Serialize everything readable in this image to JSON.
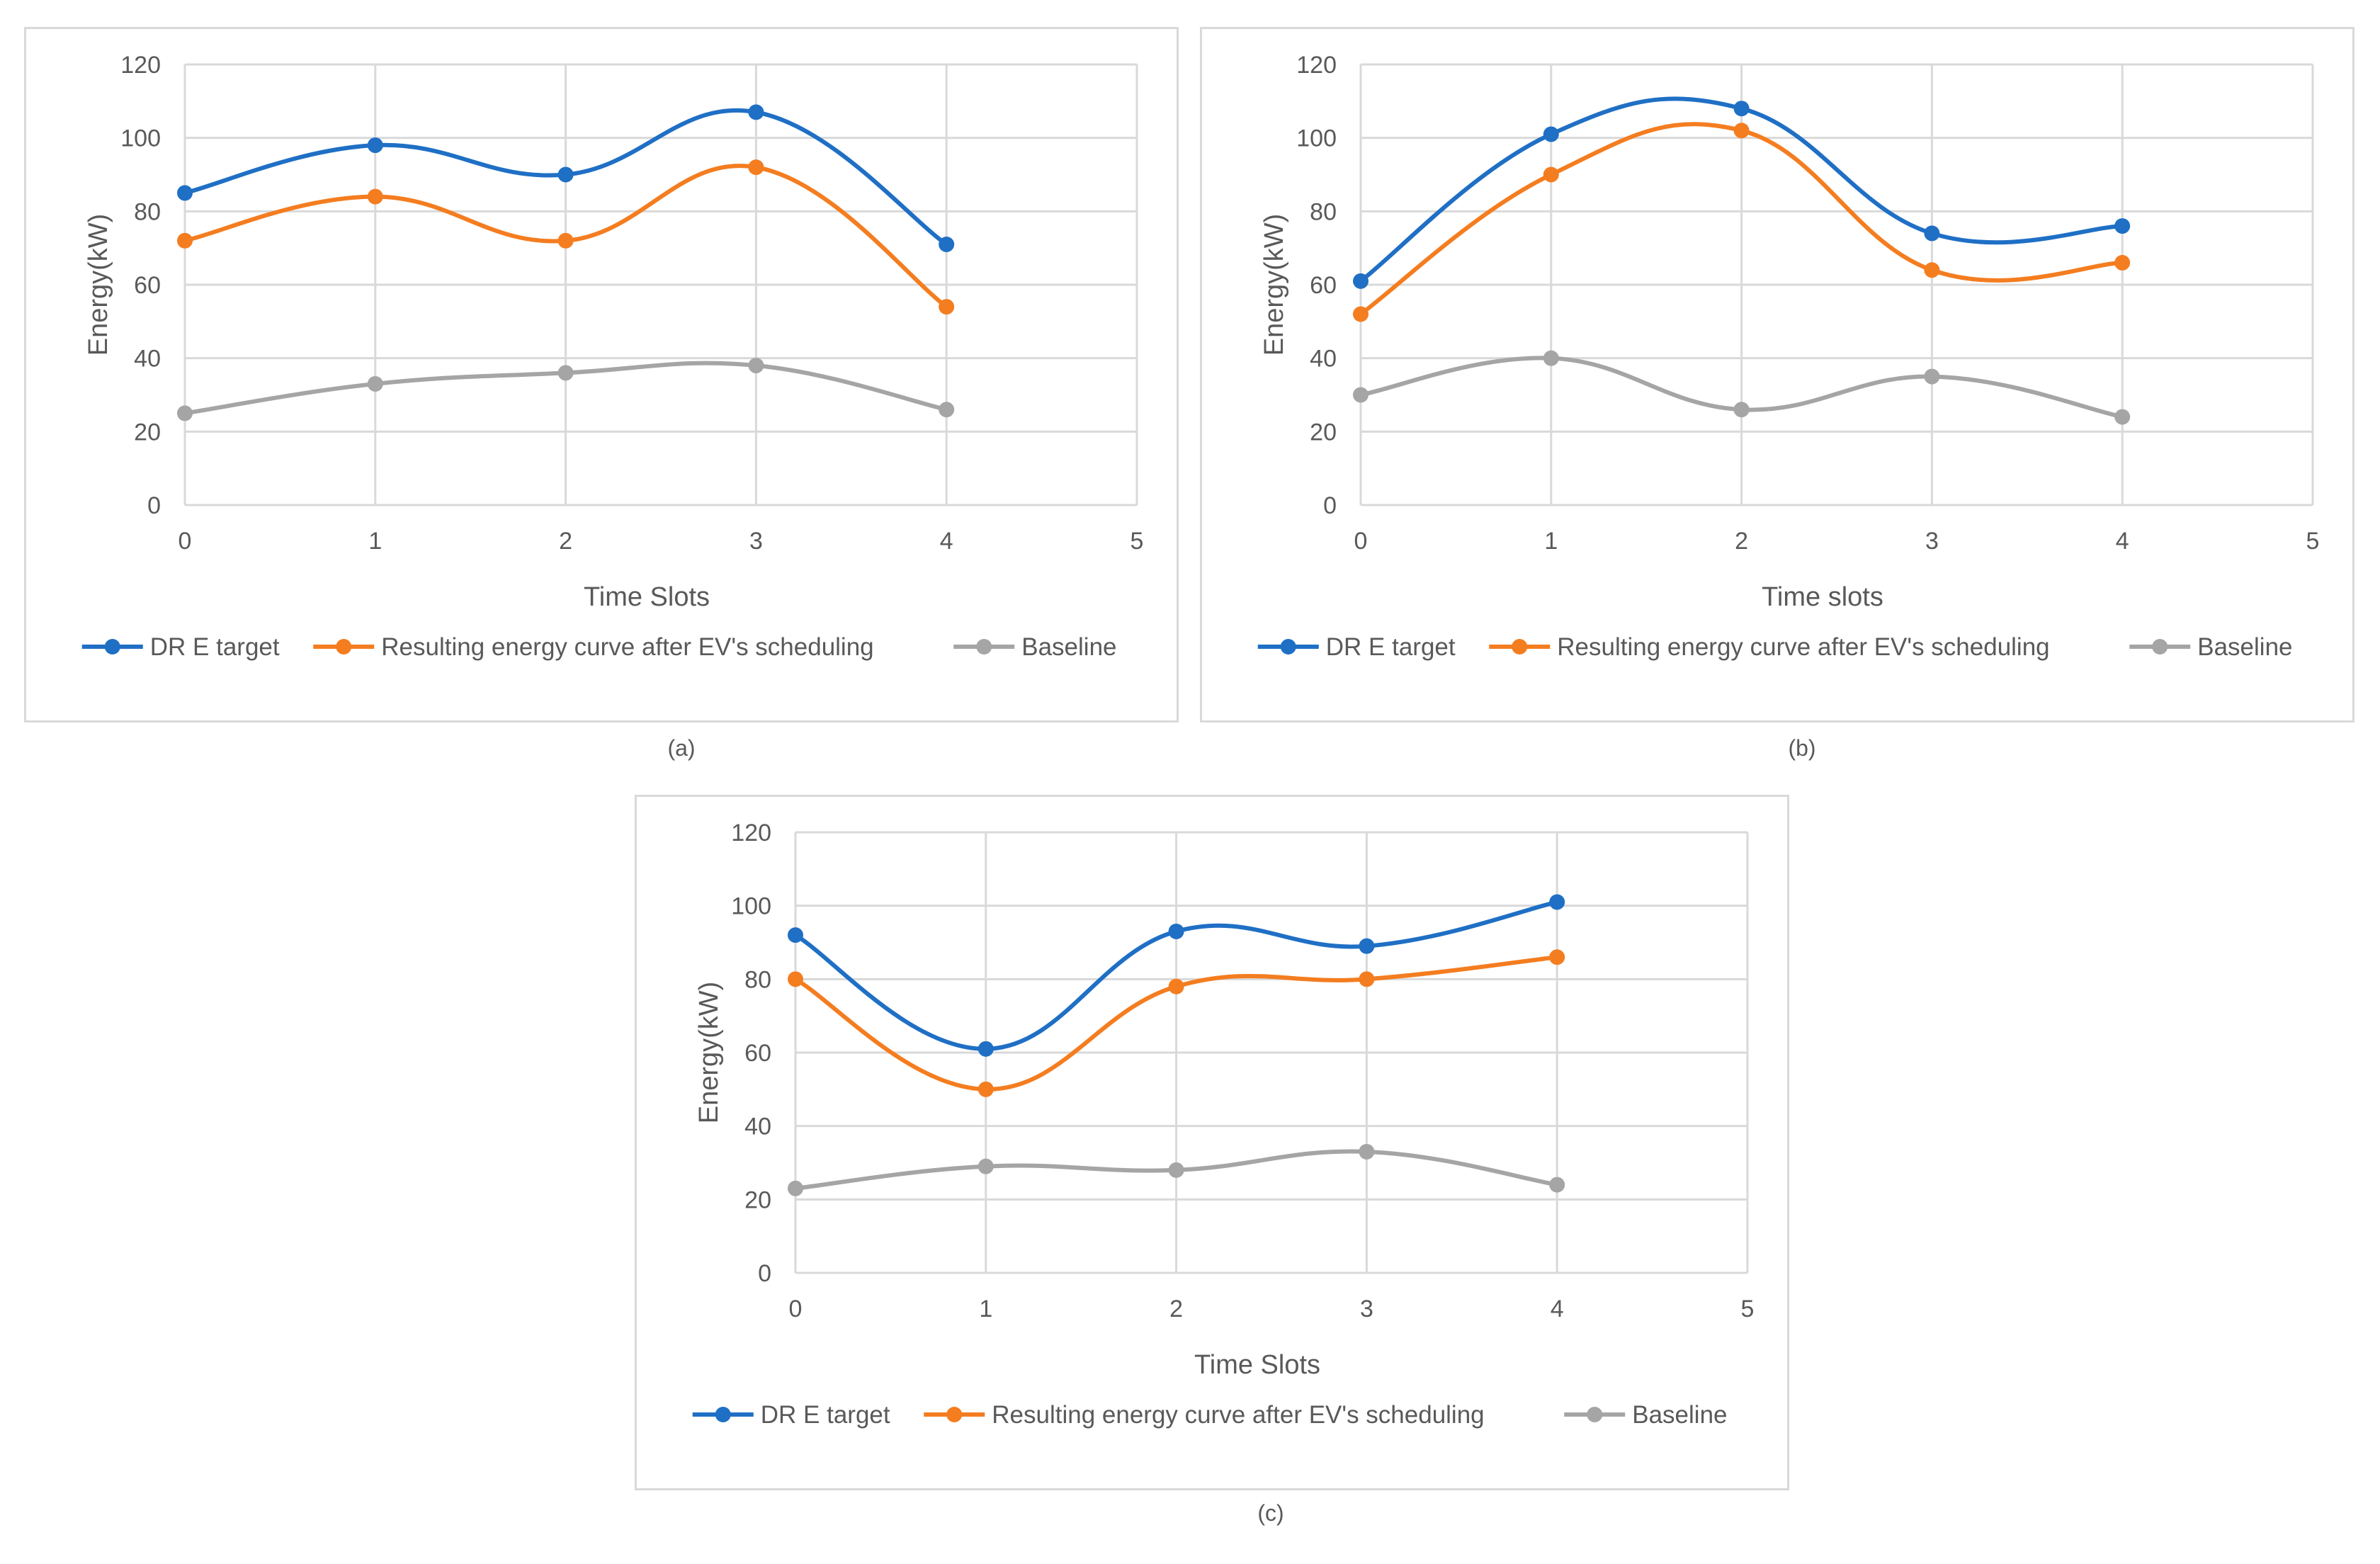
{
  "chart_data": [
    {
      "type": "line",
      "caption": "(a)",
      "xlabel": "Time Slots",
      "ylabel": "Energy(kW)",
      "xlim": [
        0,
        5
      ],
      "ylim": [
        0,
        120
      ],
      "xticks": [
        "0",
        "1",
        "2",
        "3",
        "4",
        "5"
      ],
      "yticks": [
        "0",
        "20",
        "40",
        "60",
        "80",
        "100",
        "120"
      ],
      "x": [
        0,
        1,
        2,
        3,
        4
      ],
      "series": [
        {
          "name": "DR E target",
          "color": "#1f6fc5",
          "values": [
            85,
            98,
            90,
            107,
            71
          ]
        },
        {
          "name": "Resulting energy curve after EV's scheduling",
          "color": "#f47d20",
          "values": [
            72,
            84,
            72,
            92,
            54
          ]
        },
        {
          "name": "Baseline",
          "color": "#a5a5a5",
          "values": [
            25,
            33,
            36,
            38,
            26
          ]
        }
      ]
    },
    {
      "type": "line",
      "caption": "(b)",
      "xlabel": "Time slots",
      "ylabel": "Energy(kW)",
      "xlim": [
        0,
        5
      ],
      "ylim": [
        0,
        120
      ],
      "xticks": [
        "0",
        "1",
        "2",
        "3",
        "4",
        "5"
      ],
      "yticks": [
        "0",
        "20",
        "40",
        "60",
        "80",
        "100",
        "120"
      ],
      "x": [
        0,
        1,
        2,
        3,
        4
      ],
      "series": [
        {
          "name": "DR E target",
          "color": "#1f6fc5",
          "values": [
            61,
            101,
            108,
            74,
            76
          ]
        },
        {
          "name": "Resulting energy curve after EV's scheduling",
          "color": "#f47d20",
          "values": [
            52,
            90,
            102,
            64,
            66
          ]
        },
        {
          "name": "Baseline",
          "color": "#a5a5a5",
          "values": [
            30,
            40,
            26,
            35,
            24
          ]
        }
      ]
    },
    {
      "type": "line",
      "caption": "(c)",
      "xlabel": "Time Slots",
      "ylabel": "Energy(kW)",
      "xlim": [
        0,
        5
      ],
      "ylim": [
        0,
        120
      ],
      "xticks": [
        "0",
        "1",
        "2",
        "3",
        "4",
        "5"
      ],
      "yticks": [
        "0",
        "20",
        "40",
        "60",
        "80",
        "100",
        "120"
      ],
      "x": [
        0,
        1,
        2,
        3,
        4
      ],
      "series": [
        {
          "name": "DR E target",
          "color": "#1f6fc5",
          "values": [
            92,
            61,
            93,
            89,
            101
          ]
        },
        {
          "name": "Resulting energy curve after EV's scheduling",
          "color": "#f47d20",
          "values": [
            80,
            50,
            78,
            80,
            86
          ]
        },
        {
          "name": "Baseline",
          "color": "#a5a5a5",
          "values": [
            23,
            29,
            28,
            33,
            24
          ]
        }
      ]
    }
  ]
}
